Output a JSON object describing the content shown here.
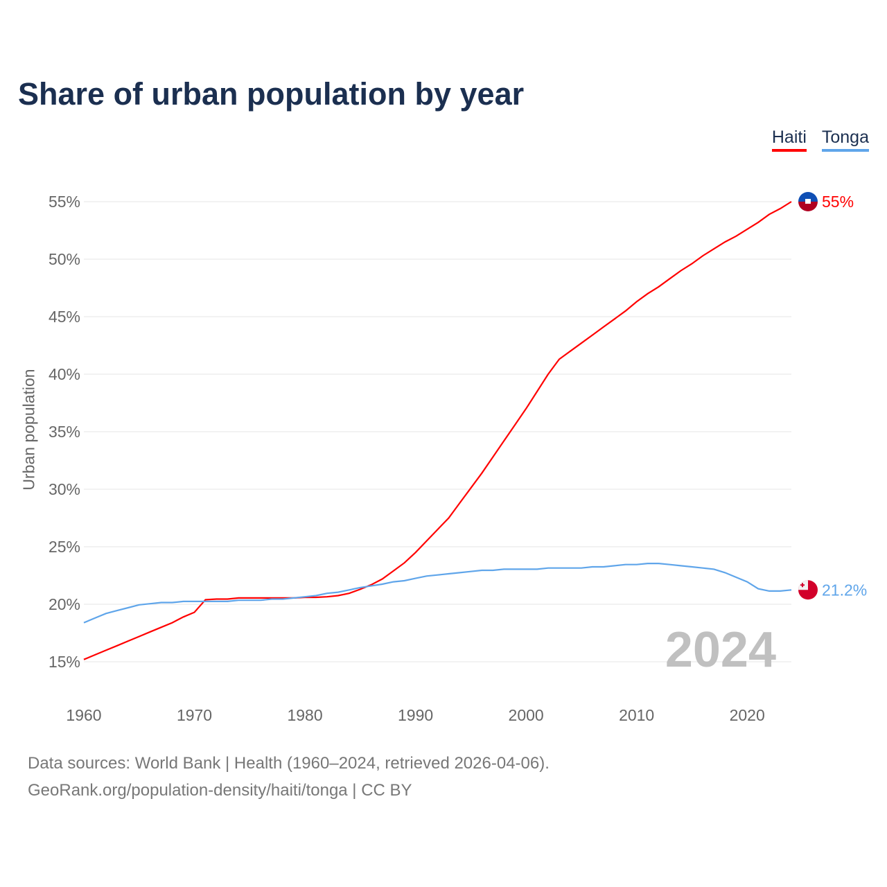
{
  "chart_data": {
    "type": "line",
    "title": "Share of urban population by year",
    "xlabel": "",
    "ylabel": "Urban population",
    "xlim": [
      1960,
      2024
    ],
    "ylim": [
      15,
      55
    ],
    "yticks": [
      15,
      20,
      25,
      30,
      35,
      40,
      45,
      50,
      55
    ],
    "ytick_labels": [
      "15%",
      "20%",
      "25%",
      "30%",
      "35%",
      "40%",
      "45%",
      "50%",
      "55%"
    ],
    "xticks": [
      1960,
      1970,
      1980,
      1990,
      2000,
      2010,
      2020
    ],
    "xtick_labels": [
      "1960",
      "1970",
      "1980",
      "1990",
      "2000",
      "2010",
      "2020"
    ],
    "grid": true,
    "legend_position": "top-right",
    "year_watermark": "2024",
    "series": [
      {
        "name": "Haiti",
        "color": "#ff0000",
        "end_label": "55%",
        "flag": "haiti-flag",
        "values": [
          15.2,
          15.6,
          16.0,
          16.4,
          16.8,
          17.2,
          17.6,
          18.0,
          18.4,
          18.9,
          19.3,
          20.4,
          20.45,
          20.45,
          20.55,
          20.55,
          20.55,
          20.55,
          20.55,
          20.55,
          20.6,
          20.6,
          20.65,
          20.75,
          20.95,
          21.3,
          21.7,
          22.2,
          22.9,
          23.6,
          24.5,
          25.5,
          26.5,
          27.5,
          28.8,
          30.1,
          31.4,
          32.8,
          34.2,
          35.6,
          37.0,
          38.5,
          40.0,
          41.3,
          42.0,
          42.7,
          43.4,
          44.1,
          44.8,
          45.5,
          46.3,
          47.0,
          47.6,
          48.3,
          49.0,
          49.6,
          50.3,
          50.9,
          51.5,
          52.0,
          52.6,
          53.2,
          53.9,
          54.4,
          55.0
        ]
      },
      {
        "name": "Tonga",
        "color": "#5fa5ea",
        "end_label": "21.2%",
        "flag": "tonga-flag",
        "values": [
          18.4,
          18.8,
          19.2,
          19.45,
          19.7,
          19.95,
          20.05,
          20.15,
          20.15,
          20.25,
          20.25,
          20.25,
          20.25,
          20.25,
          20.35,
          20.35,
          20.35,
          20.45,
          20.45,
          20.55,
          20.65,
          20.75,
          20.95,
          21.05,
          21.25,
          21.45,
          21.6,
          21.75,
          21.95,
          22.05,
          22.25,
          22.45,
          22.55,
          22.65,
          22.75,
          22.85,
          22.95,
          22.95,
          23.05,
          23.05,
          23.05,
          23.05,
          23.15,
          23.15,
          23.15,
          23.15,
          23.25,
          23.25,
          23.35,
          23.45,
          23.45,
          23.55,
          23.55,
          23.45,
          23.35,
          23.25,
          23.15,
          23.05,
          22.75,
          22.35,
          21.95,
          21.35,
          21.15,
          21.15,
          21.25
        ]
      }
    ]
  },
  "sources": {
    "line1": "Data sources: World Bank | Health (1960–2024, retrieved 2026-04-06).",
    "line2": "GeoRank.org/population-density/haiti/tonga | CC BY"
  }
}
